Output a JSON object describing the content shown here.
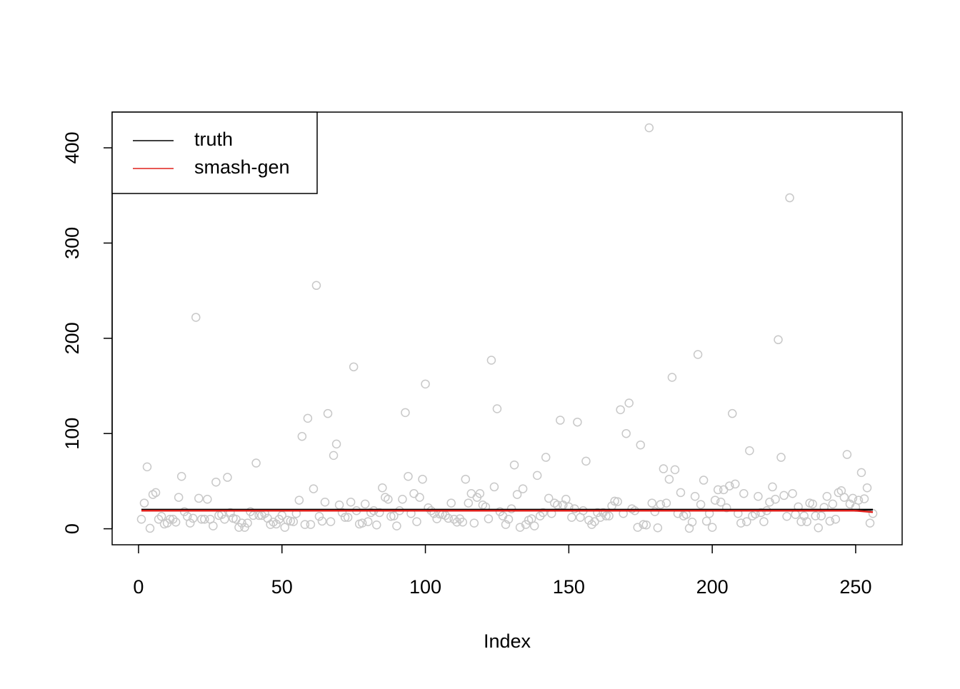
{
  "chart_data": {
    "type": "scatter",
    "xlabel": "Index",
    "x": [
      1,
      2,
      3,
      4,
      5,
      6,
      7,
      8,
      9,
      10,
      11,
      12,
      13,
      14,
      15,
      16,
      17,
      18,
      19,
      20,
      21,
      22,
      23,
      24,
      25,
      26,
      27,
      28,
      29,
      30,
      31,
      32,
      33,
      34,
      35,
      36,
      37,
      38,
      39,
      40,
      41,
      42,
      43,
      44,
      45,
      46,
      47,
      48,
      49,
      50,
      51,
      52,
      53,
      54,
      55,
      56,
      57,
      58,
      59,
      60,
      61,
      62,
      63,
      64,
      65,
      66,
      67,
      68,
      69,
      70,
      71,
      72,
      73,
      74,
      75,
      76,
      77,
      78,
      79,
      80,
      81,
      82,
      83,
      84,
      85,
      86,
      87,
      88,
      89,
      90,
      91,
      92,
      93,
      94,
      95,
      96,
      97,
      98,
      99,
      100,
      101,
      102,
      103,
      104,
      105,
      106,
      107,
      108,
      109,
      110,
      111,
      112,
      113,
      114,
      115,
      116,
      117,
      118,
      119,
      120,
      121,
      122,
      123,
      124,
      125,
      126,
      127,
      128,
      129,
      130,
      131,
      132,
      133,
      134,
      135,
      136,
      137,
      138,
      139,
      140,
      141,
      142,
      143,
      144,
      145,
      146,
      147,
      148,
      149,
      150,
      151,
      152,
      153,
      154,
      155,
      156,
      157,
      158,
      159,
      160,
      161,
      162,
      163,
      164,
      165,
      166,
      167,
      168,
      169,
      170,
      171,
      172,
      173,
      174,
      175,
      176,
      177,
      178,
      179,
      180,
      181,
      182,
      183,
      184,
      185,
      186,
      187,
      188,
      189,
      190,
      191,
      192,
      193,
      194,
      195,
      196,
      197,
      198,
      199,
      200,
      201,
      202,
      203,
      204,
      205,
      206,
      207,
      208,
      209,
      210,
      211,
      212,
      213,
      214,
      215,
      216,
      217,
      218,
      219,
      220,
      221,
      222,
      223,
      224,
      225,
      226,
      227,
      228,
      229,
      230,
      231,
      232,
      233,
      234,
      235,
      236,
      237,
      238,
      239,
      240,
      241,
      242,
      243,
      244,
      245,
      246,
      247,
      248,
      249,
      250,
      251,
      252,
      253,
      254,
      255,
      256
    ],
    "values": [
      10,
      27,
      65,
      0.5,
      36,
      38,
      10,
      13,
      5,
      6,
      10,
      10,
      7,
      33,
      55,
      18,
      13,
      6,
      11,
      222,
      32,
      10,
      10,
      31,
      10,
      3,
      49,
      14,
      15,
      10,
      54,
      17,
      11,
      10,
      1.5,
      6,
      1.5,
      6,
      18,
      14,
      69,
      14,
      14,
      16,
      11,
      4.5,
      7,
      5,
      10,
      14,
      1.5,
      9,
      8,
      7.5,
      16,
      30,
      97,
      4.5,
      116,
      4.5,
      42,
      255.5,
      13,
      8,
      28,
      121,
      7.5,
      77,
      89,
      25,
      17,
      12,
      12,
      28,
      170,
      19,
      5,
      6,
      26,
      7.5,
      17,
      19,
      4,
      17,
      43,
      33,
      31,
      13,
      13.5,
      3,
      19,
      31,
      122,
      55,
      16,
      37,
      7.5,
      33,
      52,
      152,
      22,
      19,
      16,
      10.5,
      15.5,
      15,
      14,
      11,
      27,
      10,
      7,
      10.5,
      7,
      52,
      27,
      37,
      6,
      33,
      37,
      25,
      23,
      10.5,
      177,
      44,
      126,
      18,
      13.5,
      4.5,
      10,
      21,
      67,
      36,
      1.5,
      42,
      4.5,
      9,
      10.5,
      3,
      56,
      13.5,
      17,
      75,
      32,
      16,
      27,
      25,
      114,
      25,
      31,
      23,
      12,
      21,
      112,
      12,
      19,
      71,
      9,
      4.5,
      7.5,
      17,
      12,
      17,
      13.5,
      13.5,
      24,
      29,
      28.5,
      125,
      16,
      100,
      132,
      21,
      19,
      1.5,
      88,
      4.5,
      4,
      421,
      27,
      18,
      1,
      25.5,
      63,
      27,
      52,
      159,
      62,
      16,
      38,
      13.5,
      15,
      0.5,
      7,
      34,
      183,
      25.5,
      51,
      8,
      16,
      1.5,
      30,
      41,
      28,
      41,
      22,
      45,
      121,
      47,
      16,
      6,
      37,
      7.5,
      82,
      13.5,
      15.5,
      34,
      17,
      7.5,
      19,
      28,
      44,
      31,
      198.5,
      75,
      35,
      13,
      347.5,
      37,
      15,
      23,
      7.5,
      13.5,
      7.5,
      27,
      26,
      13.5,
      1,
      13.5,
      22.5,
      34,
      8,
      26,
      10,
      38,
      40,
      33,
      78,
      26,
      32,
      22.5,
      30,
      59,
      31.5,
      43,
      6,
      16
    ],
    "point_color": "#c8c8c8",
    "series": [
      {
        "name": "truth",
        "color": "#000000",
        "x": [
          1,
          256
        ],
        "values": [
          20,
          20
        ]
      },
      {
        "name": "smash-gen",
        "color": "#e0201c",
        "x": [
          1,
          250,
          256
        ],
        "values": [
          19,
          19,
          17.5
        ]
      }
    ],
    "xlim": [
      -9.2,
      266.2
    ],
    "ylim": [
      -16.8,
      437.5
    ],
    "xticks": [
      0,
      50,
      100,
      150,
      200,
      250
    ],
    "yticks": [
      0,
      100,
      200,
      300,
      400
    ],
    "legend": "top-left"
  }
}
